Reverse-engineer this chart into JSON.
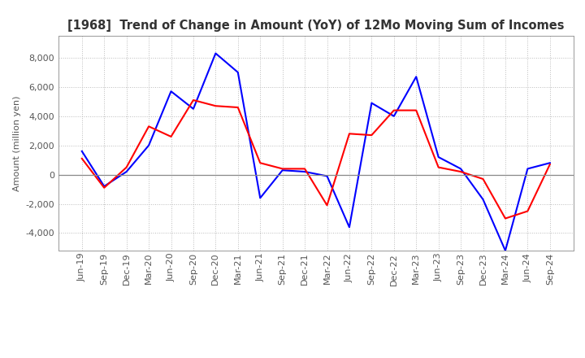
{
  "title": "[1968]  Trend of Change in Amount (YoY) of 12Mo Moving Sum of Incomes",
  "ylabel": "Amount (million yen)",
  "x_labels": [
    "Jun-19",
    "Sep-19",
    "Dec-19",
    "Mar-20",
    "Jun-20",
    "Sep-20",
    "Dec-20",
    "Mar-21",
    "Jun-21",
    "Sep-21",
    "Dec-21",
    "Mar-22",
    "Jun-22",
    "Sep-22",
    "Dec-22",
    "Mar-23",
    "Jun-23",
    "Sep-23",
    "Dec-23",
    "Mar-24",
    "Jun-24",
    "Sep-24"
  ],
  "ordinary_income": [
    1600,
    -800,
    200,
    2000,
    5700,
    4500,
    8300,
    7000,
    -1600,
    300,
    200,
    -100,
    -3600,
    4900,
    4000,
    6700,
    1200,
    400,
    -1700,
    -5200,
    400,
    800
  ],
  "net_income": [
    1100,
    -900,
    500,
    3300,
    2600,
    5100,
    4700,
    4600,
    800,
    400,
    400,
    -2100,
    2800,
    2700,
    4400,
    4400,
    500,
    200,
    -300,
    -3000,
    -2500,
    700
  ],
  "ordinary_color": "#0000ff",
  "net_color": "#ff0000",
  "ylim": [
    -5200,
    9500
  ],
  "yticks": [
    -4000,
    -2000,
    0,
    2000,
    4000,
    6000,
    8000
  ],
  "background_color": "#ffffff",
  "grid_color": "#bbbbbb",
  "title_fontsize": 10.5,
  "ylabel_fontsize": 8,
  "tick_fontsize": 8,
  "legend_fontsize": 9
}
